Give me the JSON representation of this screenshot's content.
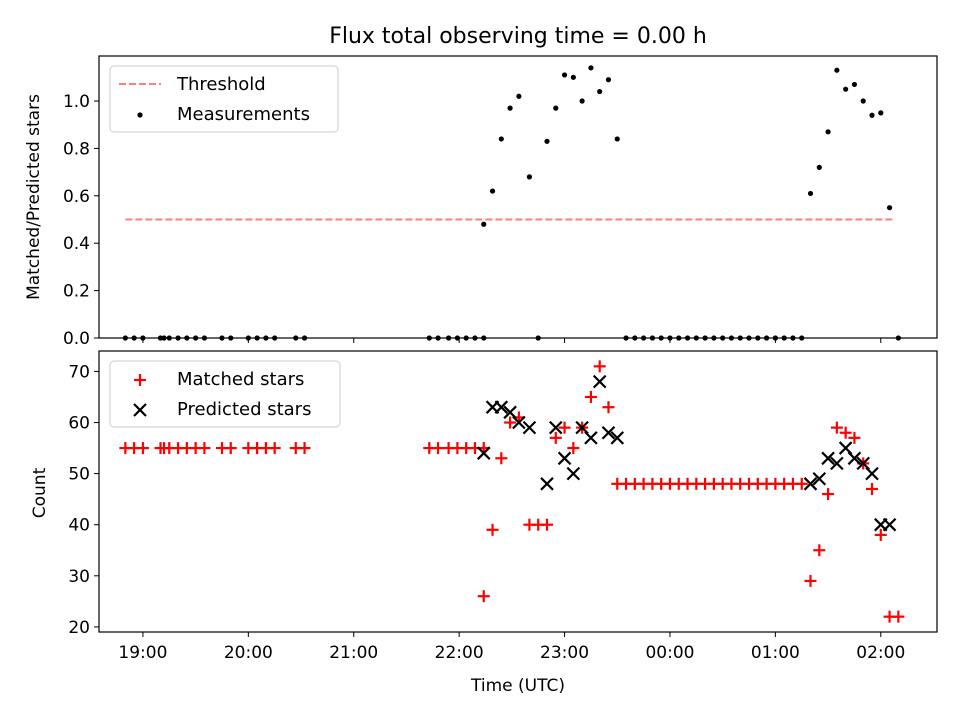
{
  "chart_data": [
    {
      "type": "scatter",
      "title": "Flux total observing time = 0.00 h",
      "xlabel": "",
      "ylabel": "Matched/Predicted stars",
      "xlim": [
        "18:35",
        "02:32"
      ],
      "ylim": [
        0,
        1.19
      ],
      "yticks": [
        0.0,
        0.2,
        0.4,
        0.6,
        0.8,
        1.0
      ],
      "ytick_labels": [
        "0.0",
        "0.2",
        "0.4",
        "0.6",
        "0.8",
        "1.0"
      ],
      "legend_position": "upper left",
      "threshold": {
        "name": "Threshold",
        "value": 0.5,
        "x_range": [
          "18:50",
          "02:08"
        ],
        "color": "#ff7f7f",
        "style": "dashed"
      },
      "series": [
        {
          "name": "Measurements",
          "marker": "dot",
          "color": "#000000",
          "points": [
            [
              "18:50",
              0
            ],
            [
              "18:55",
              0
            ],
            [
              "19:00",
              0
            ],
            [
              "19:10",
              0
            ],
            [
              "19:12",
              0
            ],
            [
              "19:15",
              0
            ],
            [
              "19:20",
              0
            ],
            [
              "19:25",
              0
            ],
            [
              "19:30",
              0
            ],
            [
              "19:35",
              0
            ],
            [
              "19:45",
              0
            ],
            [
              "19:50",
              0
            ],
            [
              "20:00",
              0
            ],
            [
              "20:05",
              0
            ],
            [
              "20:10",
              0
            ],
            [
              "20:15",
              0
            ],
            [
              "20:27",
              0
            ],
            [
              "20:32",
              0
            ],
            [
              "21:43",
              0
            ],
            [
              "21:48",
              0
            ],
            [
              "21:54",
              0
            ],
            [
              "21:59",
              0
            ],
            [
              "22:04",
              0
            ],
            [
              "22:09",
              0
            ],
            [
              "22:14",
              0
            ],
            [
              "22:14",
              0.48
            ],
            [
              "22:19",
              0.62
            ],
            [
              "22:24",
              0.84
            ],
            [
              "22:29",
              0.97
            ],
            [
              "22:34",
              1.02
            ],
            [
              "22:40",
              0.68
            ],
            [
              "22:45",
              0
            ],
            [
              "22:50",
              0.83
            ],
            [
              "22:55",
              0.97
            ],
            [
              "23:00",
              1.11
            ],
            [
              "23:05",
              1.1
            ],
            [
              "23:10",
              1.0
            ],
            [
              "23:15",
              1.14
            ],
            [
              "23:20",
              1.04
            ],
            [
              "23:25",
              1.09
            ],
            [
              "23:30",
              0.84
            ],
            [
              "23:35",
              0
            ],
            [
              "23:40",
              0
            ],
            [
              "23:45",
              0
            ],
            [
              "23:50",
              0
            ],
            [
              "23:55",
              0
            ],
            [
              "00:00",
              0
            ],
            [
              "00:05",
              0
            ],
            [
              "00:10",
              0
            ],
            [
              "00:15",
              0
            ],
            [
              "00:20",
              0
            ],
            [
              "00:25",
              0
            ],
            [
              "00:30",
              0
            ],
            [
              "00:35",
              0
            ],
            [
              "00:40",
              0
            ],
            [
              "00:45",
              0
            ],
            [
              "00:50",
              0
            ],
            [
              "00:55",
              0
            ],
            [
              "01:00",
              0
            ],
            [
              "01:05",
              0
            ],
            [
              "01:10",
              0
            ],
            [
              "01:15",
              0
            ],
            [
              "01:20",
              0.61
            ],
            [
              "01:25",
              0.72
            ],
            [
              "01:30",
              0.87
            ],
            [
              "01:35",
              1.13
            ],
            [
              "01:40",
              1.05
            ],
            [
              "01:45",
              1.07
            ],
            [
              "01:50",
              1.0
            ],
            [
              "01:55",
              0.94
            ],
            [
              "02:00",
              0.95
            ],
            [
              "02:05",
              0.55
            ],
            [
              "02:10",
              0
            ]
          ]
        }
      ]
    },
    {
      "type": "scatter",
      "title": "",
      "xlabel": "Time (UTC)",
      "ylabel": "Count",
      "xlim": [
        "18:35",
        "02:32"
      ],
      "ylim": [
        19,
        74
      ],
      "yticks": [
        20,
        30,
        40,
        50,
        60,
        70
      ],
      "ytick_labels": [
        "20",
        "30",
        "40",
        "50",
        "60",
        "70"
      ],
      "xticks": [
        "19:00",
        "20:00",
        "21:00",
        "22:00",
        "23:00",
        "00:00",
        "01:00",
        "02:00"
      ],
      "legend_position": "upper left",
      "series": [
        {
          "name": "Matched stars",
          "marker": "plus",
          "color": "#ff0000",
          "points": [
            [
              "18:50",
              55
            ],
            [
              "18:55",
              55
            ],
            [
              "19:00",
              55
            ],
            [
              "19:10",
              55
            ],
            [
              "19:12",
              55
            ],
            [
              "19:15",
              55
            ],
            [
              "19:20",
              55
            ],
            [
              "19:25",
              55
            ],
            [
              "19:30",
              55
            ],
            [
              "19:35",
              55
            ],
            [
              "19:45",
              55
            ],
            [
              "19:50",
              55
            ],
            [
              "20:00",
              55
            ],
            [
              "20:05",
              55
            ],
            [
              "20:10",
              55
            ],
            [
              "20:15",
              55
            ],
            [
              "20:27",
              55
            ],
            [
              "20:32",
              55
            ],
            [
              "21:43",
              55
            ],
            [
              "21:48",
              55
            ],
            [
              "21:54",
              55
            ],
            [
              "21:59",
              55
            ],
            [
              "22:04",
              55
            ],
            [
              "22:09",
              55
            ],
            [
              "22:14",
              55
            ],
            [
              "22:14",
              26
            ],
            [
              "22:19",
              39
            ],
            [
              "22:24",
              53
            ],
            [
              "22:29",
              60
            ],
            [
              "22:34",
              61
            ],
            [
              "22:40",
              40
            ],
            [
              "22:45",
              40
            ],
            [
              "22:50",
              40
            ],
            [
              "22:55",
              57
            ],
            [
              "23:00",
              59
            ],
            [
              "23:05",
              55
            ],
            [
              "23:10",
              59
            ],
            [
              "23:15",
              65
            ],
            [
              "23:20",
              71
            ],
            [
              "23:25",
              63
            ],
            [
              "23:30",
              48
            ],
            [
              "23:35",
              48
            ],
            [
              "23:40",
              48
            ],
            [
              "23:45",
              48
            ],
            [
              "23:50",
              48
            ],
            [
              "23:55",
              48
            ],
            [
              "00:00",
              48
            ],
            [
              "00:05",
              48
            ],
            [
              "00:10",
              48
            ],
            [
              "00:15",
              48
            ],
            [
              "00:20",
              48
            ],
            [
              "00:25",
              48
            ],
            [
              "00:30",
              48
            ],
            [
              "00:35",
              48
            ],
            [
              "00:40",
              48
            ],
            [
              "00:45",
              48
            ],
            [
              "00:50",
              48
            ],
            [
              "00:55",
              48
            ],
            [
              "01:00",
              48
            ],
            [
              "01:05",
              48
            ],
            [
              "01:10",
              48
            ],
            [
              "01:15",
              48
            ],
            [
              "01:20",
              29
            ],
            [
              "01:25",
              35
            ],
            [
              "01:30",
              46
            ],
            [
              "01:35",
              59
            ],
            [
              "01:40",
              58
            ],
            [
              "01:45",
              57
            ],
            [
              "01:50",
              52
            ],
            [
              "01:55",
              47
            ],
            [
              "02:00",
              38
            ],
            [
              "02:05",
              22
            ],
            [
              "02:10",
              22
            ]
          ]
        },
        {
          "name": "Predicted stars",
          "marker": "x",
          "color": "#000000",
          "points": [
            [
              "22:14",
              54
            ],
            [
              "22:19",
              63
            ],
            [
              "22:24",
              63
            ],
            [
              "22:29",
              62
            ],
            [
              "22:34",
              60
            ],
            [
              "22:40",
              59
            ],
            [
              "22:50",
              48
            ],
            [
              "22:55",
              59
            ],
            [
              "23:00",
              53
            ],
            [
              "23:05",
              50
            ],
            [
              "23:10",
              59
            ],
            [
              "23:15",
              57
            ],
            [
              "23:20",
              68
            ],
            [
              "23:25",
              58
            ],
            [
              "23:30",
              57
            ],
            [
              "01:20",
              48
            ],
            [
              "01:25",
              49
            ],
            [
              "01:30",
              53
            ],
            [
              "01:35",
              52
            ],
            [
              "01:40",
              55
            ],
            [
              "01:45",
              53
            ],
            [
              "01:50",
              52
            ],
            [
              "01:55",
              50
            ],
            [
              "02:00",
              40
            ],
            [
              "02:05",
              40
            ]
          ]
        }
      ]
    }
  ]
}
